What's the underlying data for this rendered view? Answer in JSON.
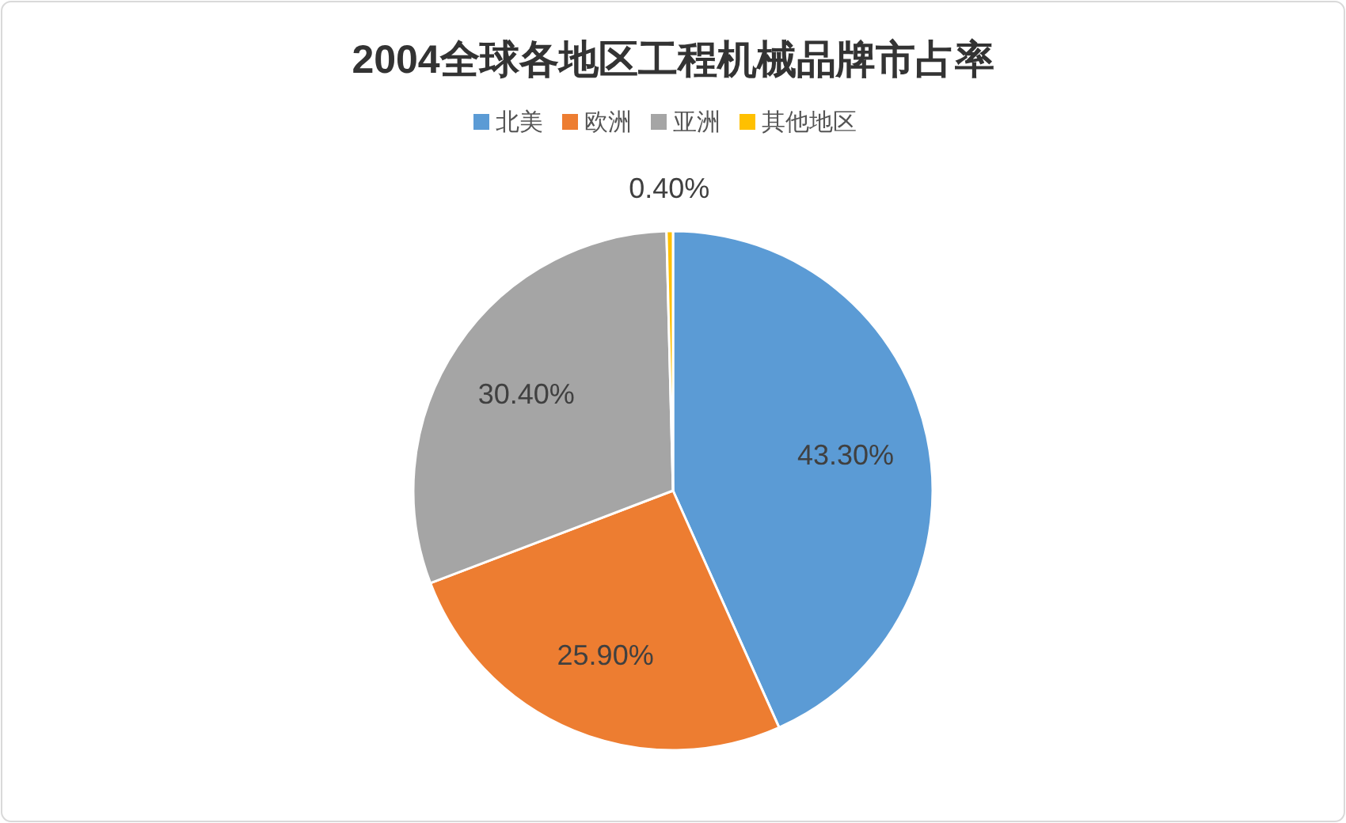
{
  "chart_data": {
    "type": "pie",
    "title": "2004全球各地区工程机械品牌市占率",
    "categories": [
      "北美",
      "欧洲",
      "亚洲",
      "其他地区"
    ],
    "values": [
      43.3,
      25.9,
      30.4,
      0.4
    ],
    "value_labels": [
      "43.30%",
      "25.90%",
      "30.40%",
      "0.40%"
    ],
    "colors": [
      "#5b9bd5",
      "#ed7d31",
      "#a5a5a5",
      "#ffc000"
    ],
    "legend": "top"
  }
}
